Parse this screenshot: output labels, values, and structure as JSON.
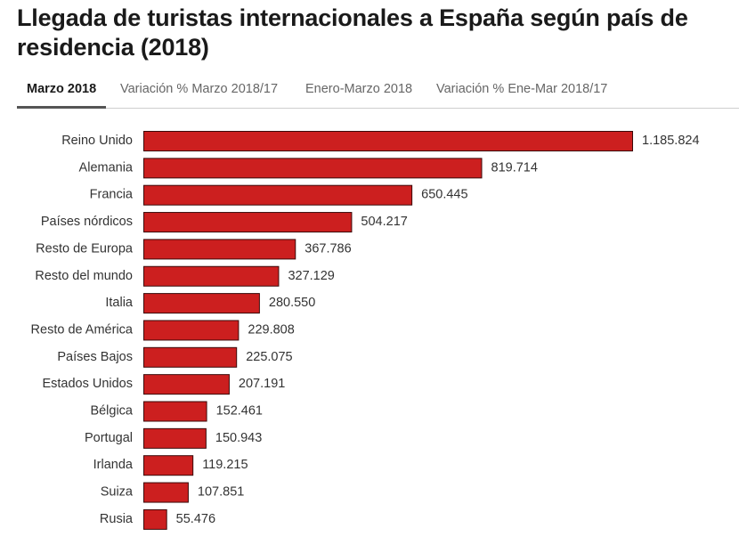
{
  "title": "Llegada de turistas internacionales a España según país de residencia (2018)",
  "tabs": [
    {
      "label": "Marzo 2018",
      "active": true
    },
    {
      "label": "Variación % Marzo 2018/17",
      "active": false
    },
    {
      "label": "Enero-Marzo 2018",
      "active": false
    },
    {
      "label": "Variación % Ene-Mar 2018/17",
      "active": false
    }
  ],
  "colors": {
    "bar": "#cc1f1f",
    "bar_border": "#3a0a0a"
  },
  "chart_data": {
    "type": "bar",
    "orientation": "horizontal",
    "categories": [
      "Reino Unido",
      "Alemania",
      "Francia",
      "Países nórdicos",
      "Resto de Europa",
      "Resto del mundo",
      "Italia",
      "Resto de América",
      "Países Bajos",
      "Estados Unidos",
      "Bélgica",
      "Portugal",
      "Irlanda",
      "Suiza",
      "Rusia"
    ],
    "values": [
      1185824,
      819714,
      650445,
      504217,
      367786,
      327129,
      280550,
      229808,
      225075,
      207191,
      152461,
      150943,
      119215,
      107851,
      55476
    ],
    "value_labels": [
      "1.185.824",
      "819.714",
      "650.445",
      "504.217",
      "367.786",
      "327.129",
      "280.550",
      "229.808",
      "225.075",
      "207.191",
      "152.461",
      "150.943",
      "119.215",
      "107.851",
      "55.476"
    ],
    "xlim": [
      0,
      1185824
    ],
    "grid": false,
    "legend": "none"
  }
}
